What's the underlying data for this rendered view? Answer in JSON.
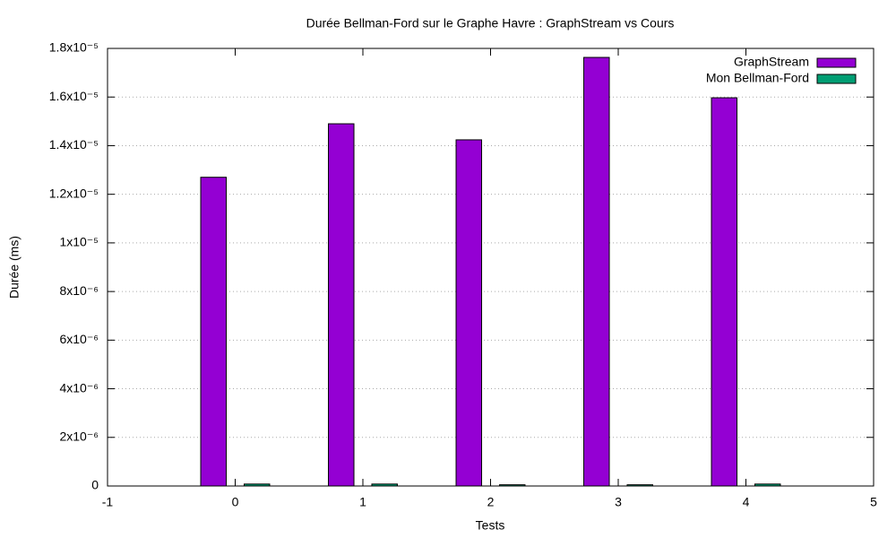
{
  "chart_data": {
    "type": "bar",
    "title": "Durée Bellman-Ford sur le Graphe Havre :  GraphStream vs Cours",
    "xlabel": "Tests",
    "ylabel": "Durée (ms)",
    "x": [
      0,
      1,
      2,
      3,
      4
    ],
    "series": [
      {
        "name": "GraphStream",
        "color": "#9400d3",
        "values": [
          1.27e-05,
          1.49e-05,
          1.424e-05,
          1.763e-05,
          1.597e-05
        ]
      },
      {
        "name": "Mon Bellman-Ford",
        "color": "#009e73",
        "values": [
          8e-08,
          8e-08,
          5e-08,
          5e-08,
          8e-08
        ]
      }
    ],
    "xlim": [
      -1,
      5
    ],
    "xticks": [
      -1,
      0,
      1,
      2,
      3,
      4,
      5
    ],
    "ylim": [
      0,
      1.8e-05
    ],
    "yticks": [
      0,
      {
        "value": 2e-06,
        "label": "2x10⁻⁶"
      },
      {
        "value": 4e-06,
        "label": "4x10⁻⁶"
      },
      {
        "value": 6e-06,
        "label": "6x10⁻⁶"
      },
      {
        "value": 8e-06,
        "label": "8x10⁻⁶"
      },
      {
        "value": 1e-05,
        "label": "1x10⁻⁵"
      },
      {
        "value": 1.2e-05,
        "label": "1.2x10⁻⁵"
      },
      {
        "value": 1.4e-05,
        "label": "1.4x10⁻⁵"
      },
      {
        "value": 1.6e-05,
        "label": "1.6x10⁻⁵"
      },
      {
        "value": 1.8e-05,
        "label": "1.8x10⁻⁵"
      }
    ],
    "grid": "y",
    "legend": "top-right"
  }
}
